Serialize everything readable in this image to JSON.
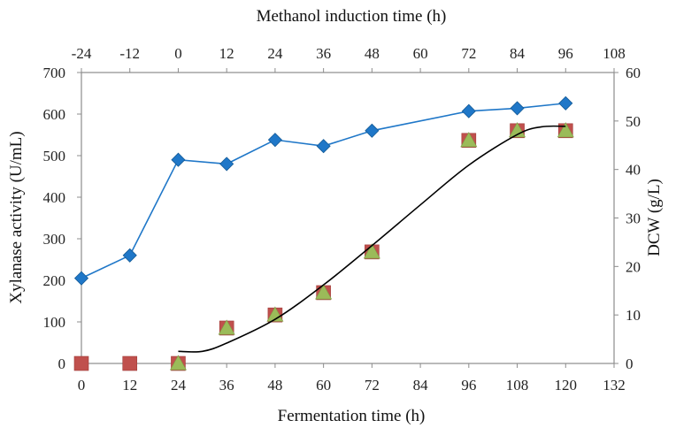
{
  "chart_data": {
    "type": "scatter",
    "title": "",
    "top_axis": {
      "label": "Methanol induction time (h)",
      "ticks": [
        -24,
        -12,
        0,
        12,
        24,
        36,
        48,
        60,
        72,
        84,
        96,
        108
      ],
      "range": [
        -24,
        108
      ]
    },
    "x_axis": {
      "label": "Fermentation time (h)",
      "ticks": [
        0,
        12,
        24,
        36,
        48,
        60,
        72,
        84,
        96,
        108,
        120,
        132
      ],
      "range": [
        0,
        132
      ]
    },
    "y_left": {
      "label": "Xylanase activity (U/mL)",
      "ticks": [
        0,
        100,
        200,
        300,
        400,
        500,
        600,
        700
      ],
      "range": [
        0,
        700
      ]
    },
    "y_right": {
      "label": "DCW (g/L)",
      "ticks": [
        0,
        10,
        20,
        30,
        40,
        50,
        60
      ],
      "range": [
        0,
        60
      ]
    },
    "grid": false,
    "legend": "none",
    "series": [
      {
        "marker": "diamond",
        "color": "#1f77c8",
        "axis": "left",
        "connected": true,
        "x": [
          0,
          12,
          24,
          36,
          48,
          60,
          72,
          96,
          108,
          120
        ],
        "y": [
          205,
          260,
          490,
          480,
          538,
          523,
          560,
          607,
          614,
          626
        ]
      },
      {
        "marker": "square",
        "color": "#c0504d",
        "axis": "right",
        "connected": false,
        "x": [
          0,
          12,
          24,
          36,
          48,
          60,
          72,
          96,
          108,
          120
        ],
        "y": [
          0,
          0,
          0,
          7.3,
          10.0,
          14.6,
          23.0,
          46.0,
          48.0,
          48.0
        ]
      },
      {
        "marker": "triangle",
        "color": "#9bbb59",
        "axis": "right",
        "connected": false,
        "x": [
          24,
          36,
          48,
          60,
          72,
          96,
          108,
          120
        ],
        "y": [
          0,
          7.3,
          10.0,
          14.6,
          23.0,
          46.0,
          48.0,
          48.0
        ]
      },
      {
        "marker": "none",
        "color": "#000000",
        "axis": "right",
        "connected": true,
        "kind": "fitted-curve",
        "x": [
          24,
          30,
          36,
          48,
          60,
          72,
          84,
          96,
          108,
          114,
          120
        ],
        "y": [
          2.5,
          2.5,
          4.2,
          9.1,
          16.2,
          24.3,
          32.7,
          40.9,
          47.2,
          48.8,
          48.9
        ]
      }
    ]
  }
}
